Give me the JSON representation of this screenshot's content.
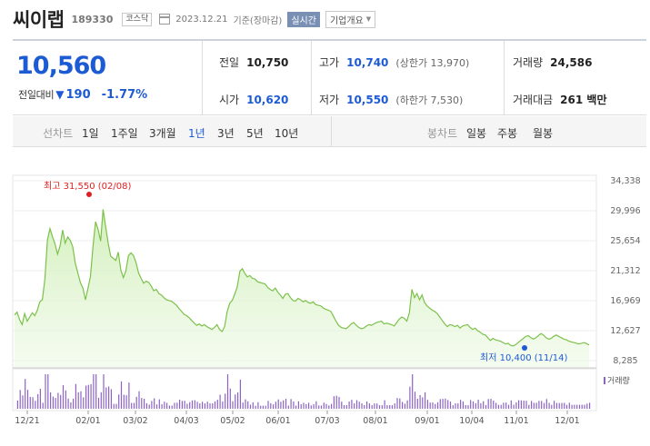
{
  "stock": {
    "name": "씨이랩",
    "code": "189330",
    "market": "코스닥",
    "date": "2023.12.21",
    "basis": "기준(장마감)",
    "realtime": "실시간",
    "company_info": "기업개요"
  },
  "quote": {
    "price": "10,560",
    "change_label": "전일대비",
    "change_amount": "190",
    "change_percent": "-1.77%",
    "prev_close_label": "전일",
    "prev_close": "10,750",
    "open_label": "시가",
    "open": "10,620",
    "high_label": "고가",
    "high": "10,740",
    "upper_limit_label": "(상한가 13,970)",
    "low_label": "저가",
    "low": "10,550",
    "lower_limit_label": "(하한가 7,530)",
    "volume_label": "거래량",
    "volume": "24,586",
    "trade_value_label": "거래대금",
    "trade_value": "261 백만"
  },
  "line_tabs": {
    "label": "선차트",
    "items": [
      "1일",
      "1주일",
      "3개월",
      "1년",
      "3년",
      "5년",
      "10년"
    ],
    "active": "1년"
  },
  "candle_tabs": {
    "label": "봉차트",
    "items": [
      "일봉",
      "주봉",
      "월봉"
    ]
  },
  "colors": {
    "accent": "#1d5bd4",
    "line": "#7cc14a",
    "volume": "#8c63c4",
    "high_marker": "#e02020",
    "low_marker": "#1d5bd4"
  },
  "chart_data": {
    "type": "area",
    "x_ticks": [
      "12/21",
      "02/01",
      "03/02",
      "04/03",
      "05/02",
      "06/01",
      "07/03",
      "08/01",
      "09/01",
      "10/04",
      "11/01",
      "12/01"
    ],
    "y_ticks": [
      "34,338",
      "29,996",
      "25,654",
      "21,312",
      "16,969",
      "12,627",
      "8,285"
    ],
    "ylim": [
      8285,
      34338
    ],
    "high_annotation": "최고 31,550 (02/08)",
    "low_annotation": "최저 10,400 (11/14)",
    "volume_label": "거래량",
    "series": [
      {
        "values": [
          14900,
          15300,
          14200,
          13500,
          15100,
          14000,
          14600,
          15200,
          14800,
          15600,
          16800,
          17100,
          20100,
          25800,
          27400,
          26200,
          25200,
          23700,
          24900,
          27200,
          25300,
          26200,
          25700,
          24800,
          22400,
          21000,
          19600,
          18800,
          17100,
          18700,
          20500,
          24800,
          28400,
          27300,
          25600,
          30200,
          27700,
          25300,
          23400,
          23100,
          22800,
          24000,
          21400,
          20300,
          21300,
          23500,
          23900,
          23500,
          22500,
          21000,
          20200,
          19500,
          19800,
          19600,
          19100,
          18400,
          18600,
          18000,
          17800,
          17400,
          17100,
          17000,
          16900,
          16600,
          16300,
          15800,
          15400,
          15000,
          14800,
          14500,
          14100,
          13700,
          13400,
          13600,
          13300,
          13500,
          13200,
          13000,
          12800,
          13100,
          13500,
          12800,
          12500,
          13200,
          15400,
          16600,
          17000,
          17900,
          19000,
          21200,
          21600,
          20900,
          20400,
          20600,
          20200,
          20100,
          19700,
          19600,
          19500,
          19400,
          18900,
          18600,
          18400,
          18800,
          18200,
          17800,
          17300,
          17900,
          18000,
          17400,
          17000,
          16900,
          17300,
          17100,
          16800,
          17000,
          16700,
          16600,
          16800,
          16400,
          16300,
          16200,
          15900,
          15700,
          15600,
          15400,
          14700,
          14000,
          13400,
          13100,
          13000,
          12900,
          13200,
          13600,
          13800,
          13400,
          13100,
          12900,
          13000,
          13300,
          13500,
          13400,
          13600,
          13800,
          13900,
          14000,
          13600,
          13700,
          13600,
          13500,
          13300,
          13800,
          14300,
          14600,
          14400,
          14000,
          15200,
          18600,
          17400,
          18000,
          17100,
          17800,
          16700,
          16200,
          15900,
          15600,
          15400,
          15100,
          14600,
          14100,
          13600,
          13200,
          13500,
          13400,
          13200,
          13400,
          13000,
          13300,
          13400,
          13500,
          13100,
          12800,
          13000,
          12600,
          12400,
          12100,
          12000,
          11600,
          11200,
          11500,
          11300,
          11200,
          11100,
          10900,
          10700,
          10800,
          10500,
          10400,
          10600,
          10900,
          11200,
          11500,
          11800,
          11900,
          11600,
          11400,
          11600,
          11900,
          12200,
          12000,
          11600,
          11400,
          11500,
          11800,
          12000,
          11800,
          11600,
          11400,
          11300,
          11100,
          11000,
          10900,
          10800,
          10700,
          10800,
          10900,
          10750,
          10560
        ]
      }
    ]
  }
}
